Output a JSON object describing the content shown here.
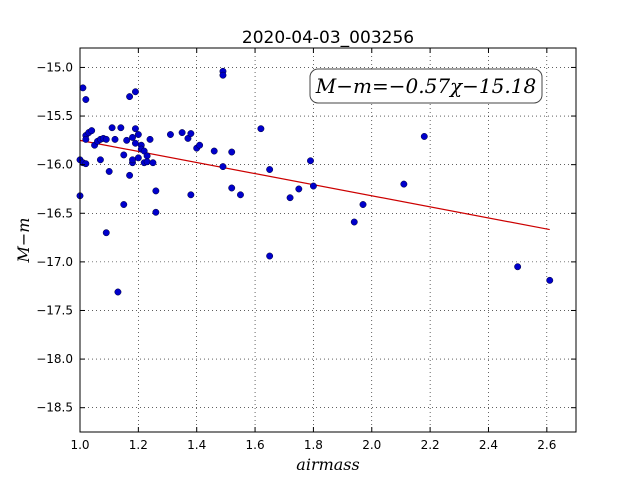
{
  "chart_data": {
    "type": "scatter",
    "title": "2020-04-03_003256",
    "xlabel": "airmass",
    "ylabel": "M−m",
    "annotation": "M−m=−0.57χ−15.18",
    "xlim": [
      1.0,
      2.7
    ],
    "ylim": [
      -18.75,
      -14.8
    ],
    "grid": true,
    "x_ticks": [
      1.0,
      1.2,
      1.4,
      1.6,
      1.8,
      2.0,
      2.2,
      2.4,
      2.6
    ],
    "x_tick_labels": [
      "1.0",
      "1.2",
      "1.4",
      "1.6",
      "1.8",
      "2.0",
      "2.2",
      "2.4",
      "2.6"
    ],
    "y_ticks": [
      -15.0,
      -15.5,
      -16.0,
      -16.5,
      -17.0,
      -17.5,
      -18.0,
      -18.5
    ],
    "y_tick_labels": [
      "−15.0",
      "−15.5",
      "−16.0",
      "−16.5",
      "−17.0",
      "−17.5",
      "−18.0",
      "−18.5"
    ],
    "fit_line": {
      "slope": -0.57,
      "intercept": -15.18,
      "x": [
        1.0,
        2.61
      ],
      "color": "#cc0000"
    },
    "point_color": "#0000cc",
    "points": [
      [
        1.0,
        -16.32
      ],
      [
        1.0,
        -15.95
      ],
      [
        1.01,
        -15.98
      ],
      [
        1.01,
        -15.21
      ],
      [
        1.02,
        -15.33
      ],
      [
        1.02,
        -15.7
      ],
      [
        1.02,
        -15.74
      ],
      [
        1.02,
        -15.99
      ],
      [
        1.03,
        -15.67
      ],
      [
        1.04,
        -15.65
      ],
      [
        1.05,
        -15.8
      ],
      [
        1.06,
        -15.76
      ],
      [
        1.07,
        -15.74
      ],
      [
        1.07,
        -15.95
      ],
      [
        1.08,
        -15.73
      ],
      [
        1.09,
        -15.74
      ],
      [
        1.09,
        -16.7
      ],
      [
        1.1,
        -16.07
      ],
      [
        1.11,
        -15.62
      ],
      [
        1.12,
        -15.74
      ],
      [
        1.13,
        -17.31
      ],
      [
        1.14,
        -15.62
      ],
      [
        1.15,
        -15.9
      ],
      [
        1.15,
        -16.41
      ],
      [
        1.16,
        -15.75
      ],
      [
        1.17,
        -15.3
      ],
      [
        1.17,
        -16.11
      ],
      [
        1.18,
        -15.72
      ],
      [
        1.18,
        -15.98
      ],
      [
        1.18,
        -15.95
      ],
      [
        1.19,
        -15.25
      ],
      [
        1.19,
        -15.63
      ],
      [
        1.19,
        -15.78
      ],
      [
        1.2,
        -15.93
      ],
      [
        1.2,
        -15.69
      ],
      [
        1.21,
        -15.8
      ],
      [
        1.21,
        -15.84
      ],
      [
        1.22,
        -15.98
      ],
      [
        1.22,
        -15.86
      ],
      [
        1.23,
        -15.91
      ],
      [
        1.23,
        -15.97
      ],
      [
        1.24,
        -15.74
      ],
      [
        1.25,
        -15.98
      ],
      [
        1.26,
        -16.27
      ],
      [
        1.26,
        -16.49
      ],
      [
        1.31,
        -15.69
      ],
      [
        1.35,
        -15.67
      ],
      [
        1.37,
        -15.73
      ],
      [
        1.38,
        -15.68
      ],
      [
        1.38,
        -16.31
      ],
      [
        1.4,
        -15.83
      ],
      [
        1.41,
        -15.8
      ],
      [
        1.46,
        -15.86
      ],
      [
        1.49,
        -15.04
      ],
      [
        1.49,
        -15.08
      ],
      [
        1.49,
        -16.02
      ],
      [
        1.52,
        -16.24
      ],
      [
        1.52,
        -15.87
      ],
      [
        1.55,
        -16.31
      ],
      [
        1.62,
        -15.63
      ],
      [
        1.65,
        -16.05
      ],
      [
        1.65,
        -16.94
      ],
      [
        1.72,
        -16.34
      ],
      [
        1.75,
        -16.25
      ],
      [
        1.79,
        -15.96
      ],
      [
        1.8,
        -16.22
      ],
      [
        1.94,
        -16.59
      ],
      [
        1.97,
        -16.41
      ],
      [
        2.11,
        -16.2
      ],
      [
        2.18,
        -15.71
      ],
      [
        2.5,
        -17.05
      ],
      [
        2.61,
        -17.19
      ]
    ]
  }
}
